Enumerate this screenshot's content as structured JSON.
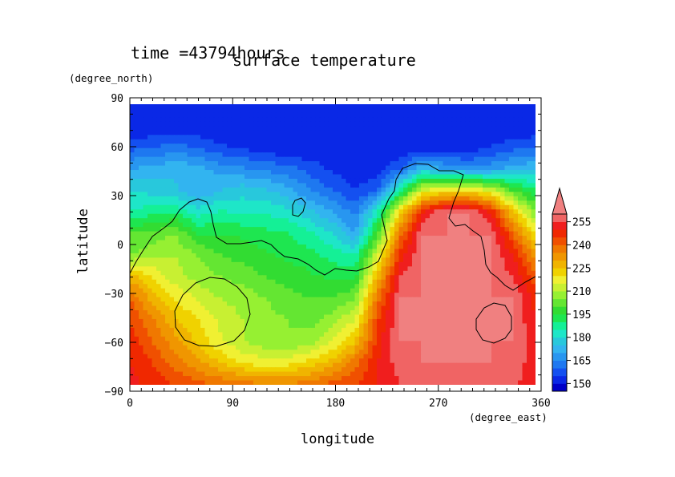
{
  "header": {
    "time_label": "time =43794hours"
  },
  "chart_data": {
    "type": "heatmap",
    "title": "surface temperature",
    "xlabel": "longitude",
    "ylabel": "latitude",
    "x_units": "(degree_east)",
    "y_units": "(degree_north)",
    "xlim": [
      0,
      360
    ],
    "ylim": [
      -90,
      90
    ],
    "x_ticks": [
      "0",
      "90",
      "180",
      "270",
      "360"
    ],
    "y_ticks": [
      "90",
      "60",
      "30",
      "0",
      "-30",
      "-60",
      "-90"
    ],
    "colorbar": {
      "levels": [
        145,
        150,
        155,
        160,
        165,
        170,
        175,
        180,
        185,
        190,
        195,
        200,
        205,
        210,
        215,
        220,
        225,
        230,
        235,
        240,
        245,
        250,
        255,
        260
      ],
      "labels": [
        "150",
        "165",
        "180",
        "195",
        "210",
        "225",
        "240",
        "255"
      ],
      "colors": [
        "#0000c8",
        "#0a28e6",
        "#1450f0",
        "#1e78f0",
        "#2896f0",
        "#32b4f0",
        "#28c8dc",
        "#1ee6c8",
        "#14f096",
        "#1ee650",
        "#32dc32",
        "#64e632",
        "#96f032",
        "#c8f032",
        "#f0f032",
        "#f0d200",
        "#f0b400",
        "#f09600",
        "#f07800",
        "#f05000",
        "#f02800",
        "#f01e1e",
        "#f06464",
        "#f08080"
      ],
      "extend": "max"
    },
    "field_temperature": [
      [
        150,
        150,
        150,
        150,
        150,
        150,
        150,
        150,
        150,
        150,
        150,
        150,
        150,
        150,
        150,
        150,
        150,
        150,
        150
      ],
      [
        150,
        150,
        150,
        150,
        150,
        150,
        150,
        150,
        150,
        150,
        150,
        150,
        150,
        150,
        150,
        150,
        150,
        150,
        150
      ],
      [
        158,
        160,
        162,
        160,
        156,
        154,
        152,
        150,
        150,
        150,
        150,
        150,
        150,
        150,
        150,
        152,
        155,
        158,
        160
      ],
      [
        170,
        172,
        174,
        172,
        168,
        166,
        164,
        162,
        158,
        154,
        152,
        152,
        160,
        175,
        170,
        166,
        168,
        172,
        175
      ],
      [
        180,
        178,
        176,
        170,
        175,
        178,
        176,
        172,
        165,
        160,
        155,
        160,
        188,
        215,
        220,
        222,
        215,
        200,
        190
      ],
      [
        185,
        188,
        190,
        182,
        186,
        184,
        184,
        182,
        176,
        170,
        163,
        185,
        222,
        250,
        260,
        260,
        250,
        225,
        205
      ],
      [
        200,
        202,
        205,
        195,
        195,
        194,
        192,
        190,
        186,
        180,
        170,
        200,
        238,
        260,
        260,
        260,
        260,
        240,
        220
      ],
      [
        205,
        208,
        210,
        205,
        200,
        198,
        196,
        194,
        192,
        188,
        185,
        215,
        248,
        260,
        260,
        260,
        260,
        250,
        232
      ],
      [
        228,
        220,
        212,
        208,
        205,
        203,
        200,
        198,
        196,
        194,
        194,
        228,
        255,
        260,
        260,
        260,
        260,
        255,
        242
      ],
      [
        240,
        228,
        220,
        214,
        210,
        208,
        205,
        202,
        200,
        200,
        205,
        238,
        260,
        260,
        260,
        260,
        260,
        260,
        248
      ],
      [
        245,
        236,
        226,
        220,
        214,
        210,
        207,
        205,
        203,
        208,
        215,
        245,
        260,
        260,
        260,
        260,
        260,
        260,
        250
      ],
      [
        248,
        240,
        232,
        224,
        216,
        210,
        207,
        205,
        208,
        215,
        225,
        248,
        260,
        260,
        260,
        260,
        260,
        260,
        252
      ],
      [
        250,
        245,
        238,
        232,
        225,
        220,
        217,
        218,
        222,
        228,
        238,
        250,
        258,
        260,
        260,
        260,
        260,
        258,
        252
      ],
      [
        252,
        248,
        245,
        242,
        240,
        238,
        236,
        236,
        238,
        242,
        245,
        250,
        255,
        258,
        258,
        258,
        258,
        256,
        252
      ]
    ]
  }
}
